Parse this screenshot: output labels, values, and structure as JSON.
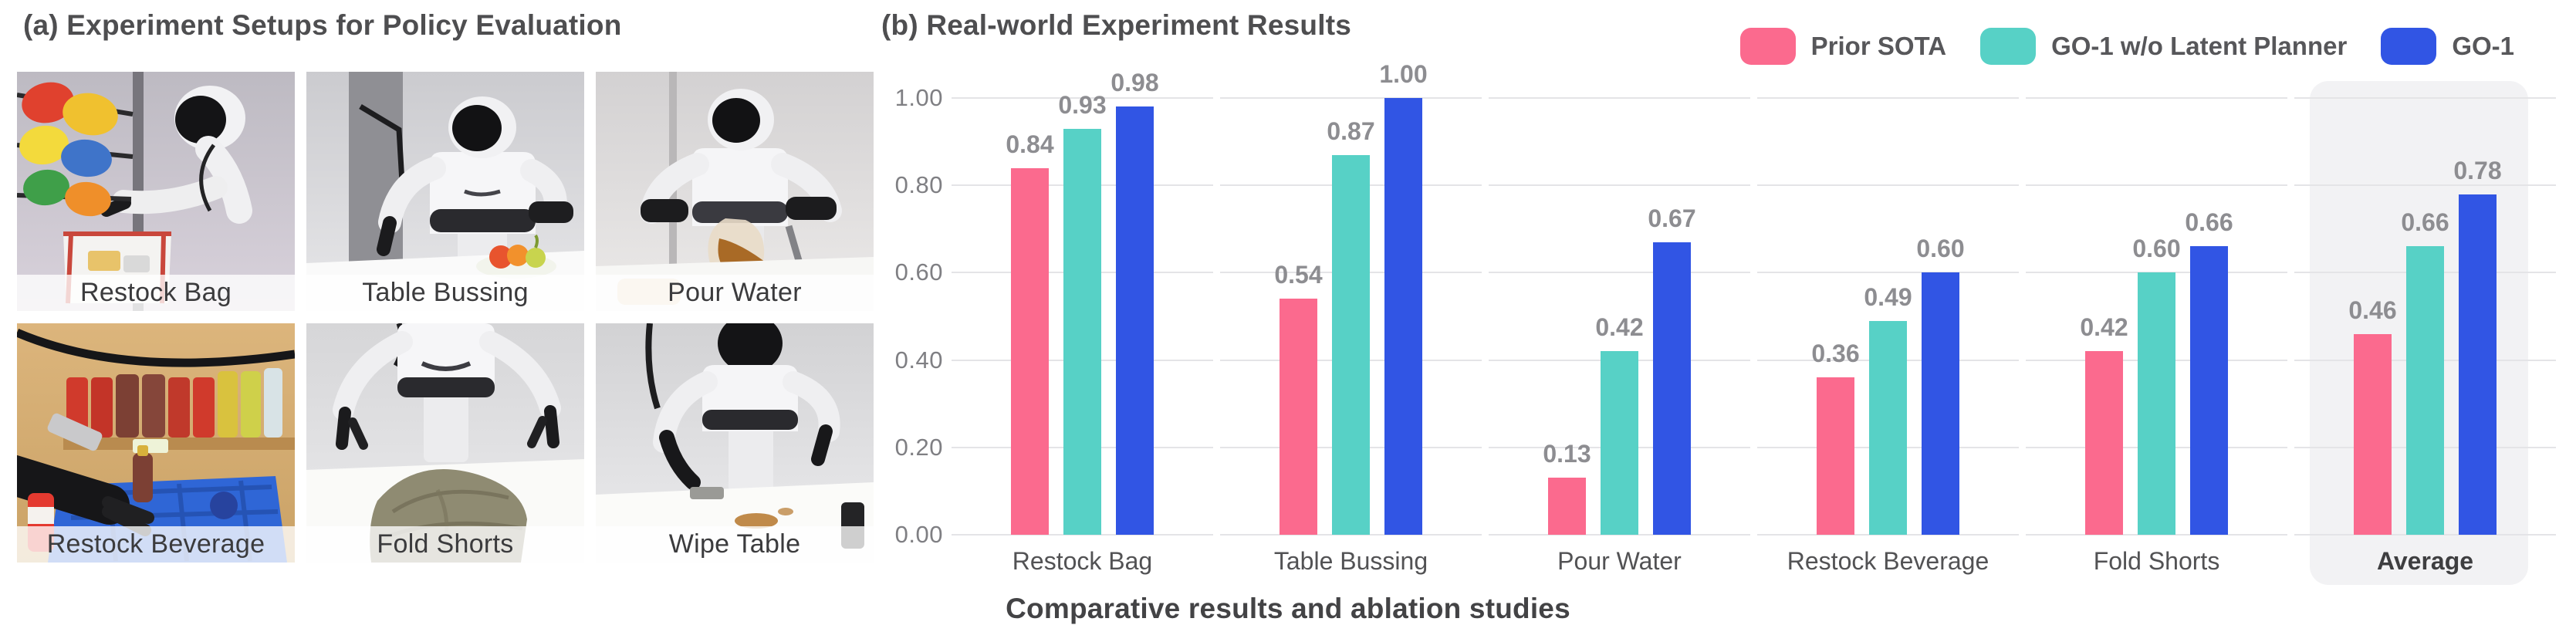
{
  "panel_a": {
    "title": "(a) Experiment Setups for Policy Evaluation",
    "tiles": [
      {
        "label": "Restock Bag"
      },
      {
        "label": "Table Bussing"
      },
      {
        "label": "Pour Water"
      },
      {
        "label": "Restock Beverage"
      },
      {
        "label": "Fold Shorts"
      },
      {
        "label": "Wipe Table"
      }
    ]
  },
  "panel_b": {
    "title": "(b) Real-world Experiment Results",
    "caption": "Comparative results and ablation studies"
  },
  "colors": {
    "prior_sota": "#FB6A8E",
    "go1_wo_latent_planner": "#57D1C6",
    "go1": "#3155E4",
    "gridline": "#E4E4E7",
    "average_highlight_bg": "#F2F2F4",
    "value_label": "#8D8D91",
    "tick_label": "#7F7F83",
    "category_label": "#525254",
    "title": "#4E4E50"
  },
  "chart_data": {
    "type": "bar",
    "title": "(b) Real-world Experiment Results",
    "categories": [
      "Restock Bag",
      "Table Bussing",
      "Pour Water",
      "Restock Beverage",
      "Fold Shorts",
      "Average"
    ],
    "highlight_category": "Average",
    "series": [
      {
        "name": "Prior SOTA",
        "color": "#FB6A8E",
        "values": [
          0.84,
          0.54,
          0.13,
          0.36,
          0.42,
          0.46
        ]
      },
      {
        "name": "GO-1 w/o Latent Planner",
        "color": "#57D1C6",
        "values": [
          0.93,
          0.87,
          0.42,
          0.49,
          0.6,
          0.66
        ]
      },
      {
        "name": "GO-1",
        "color": "#3155E4",
        "values": [
          0.98,
          1.0,
          0.67,
          0.6,
          0.66,
          0.78
        ]
      }
    ],
    "yticks": [
      0.0,
      0.2,
      0.4,
      0.6,
      0.8,
      1.0
    ],
    "ylim": [
      0,
      1.0
    ],
    "grid": true,
    "value_labels": true,
    "legend_position": "top-right",
    "xlabel": "",
    "ylabel": ""
  }
}
